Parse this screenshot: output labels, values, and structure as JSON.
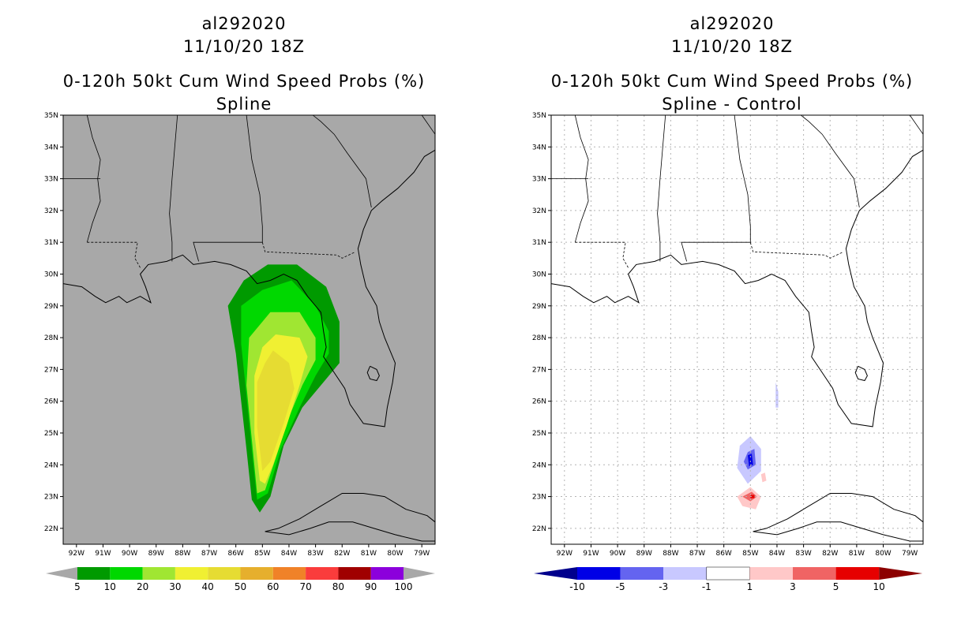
{
  "left": {
    "storm_id": "al292020",
    "date": "11/10/20 18Z",
    "product": "0-120h 50kt Cum Wind Speed Probs (%)",
    "subtitle": "Spline",
    "colorbar_labels": [
      "5",
      "10",
      "20",
      "30",
      "40",
      "50",
      "60",
      "70",
      "80",
      "90",
      "100"
    ],
    "colorbar_colors": [
      "#009a00",
      "#00d800",
      "#a0e632",
      "#f0f032",
      "#e6dc32",
      "#e6af2d",
      "#f08228",
      "#fa3c3c",
      "#a00000",
      "#8c00dc"
    ],
    "background_color": "#a8a8a8"
  },
  "right": {
    "storm_id": "al292020",
    "date": "11/10/20 18Z",
    "product": "0-120h 50kt Cum Wind Speed Probs (%)",
    "subtitle": "Spline - Control",
    "colorbar_labels": [
      "-10",
      "-5",
      "-3",
      "-1",
      "1",
      "3",
      "5",
      "10"
    ],
    "colorbar_colors": [
      "#00008c",
      "#0000e6",
      "#6464f0",
      "#c8c8ff",
      "#ffffff",
      "#ffc8c8",
      "#f06464",
      "#e60000",
      "#8c0000"
    ],
    "background_color": "#ffffff"
  },
  "axes": {
    "lat_labels": [
      "35N",
      "34N",
      "33N",
      "32N",
      "31N",
      "30N",
      "29N",
      "28N",
      "27N",
      "26N",
      "25N",
      "24N",
      "23N",
      "22N"
    ],
    "lon_labels": [
      "92W",
      "91W",
      "90W",
      "89W",
      "88W",
      "87W",
      "86W",
      "85W",
      "84W",
      "83W",
      "82W",
      "81W",
      "80W",
      "79W"
    ],
    "lat_range": [
      21.5,
      35
    ],
    "lon_range": [
      -92.5,
      -78.5
    ]
  }
}
